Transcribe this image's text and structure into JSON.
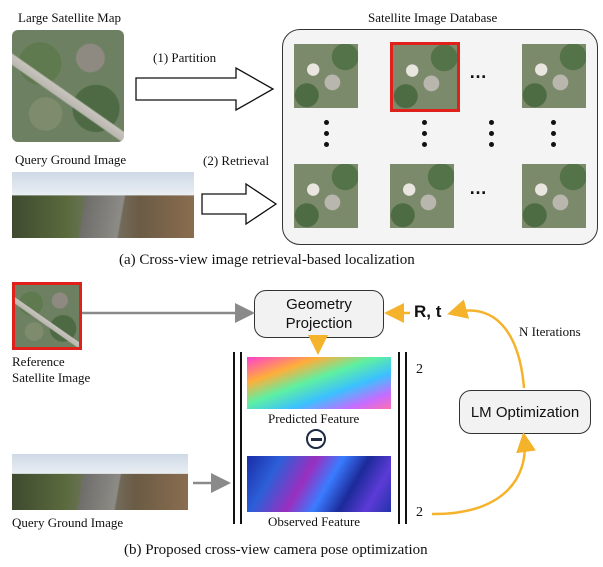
{
  "part_a": {
    "large_map_label": "Large Satellite Map",
    "query_label": "Query Ground Image",
    "partition_label": "(1) Partition",
    "retrieval_label": "(2) Retrieval",
    "db_title": "Satellite Image Database",
    "ellipsis": "…",
    "caption": "(a) Cross-view image retrieval-based localization"
  },
  "part_b": {
    "reference_label_line1": "Reference",
    "reference_label_line2": "Satellite Image",
    "query_label": "Query Ground Image",
    "geometry_line1": "Geometry",
    "geometry_line2": "Projection",
    "predicted_label": "Predicted Feature",
    "observed_label": "Observed Feature",
    "minus_symbol": "−",
    "norm_top": "2",
    "norm_bottom": "2",
    "pose_label": "R, t",
    "iterations_label": "N Iterations",
    "lm_label": "LM Optimization",
    "caption": "(b) Proposed cross-view camera pose optimization"
  },
  "colors": {
    "highlight": "#e0201b",
    "arrow_gray": "#8a8a8a",
    "arrow_gold": "#f4b32a"
  }
}
